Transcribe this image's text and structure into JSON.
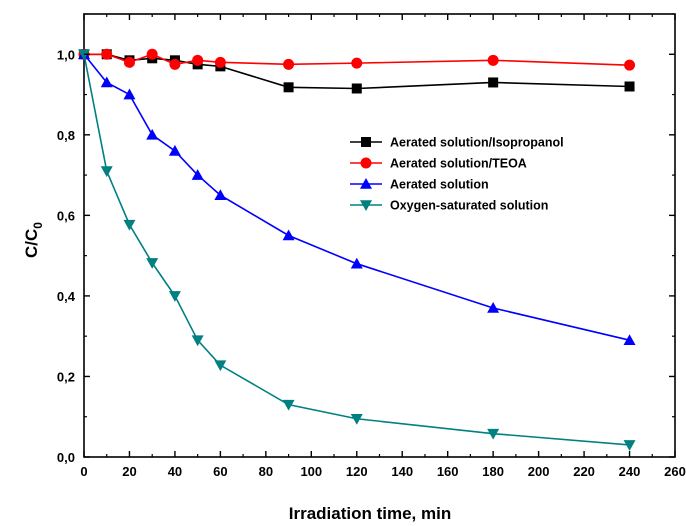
{
  "chart_data": {
    "type": "line",
    "title": "",
    "xlabel": "Irradiation time, min",
    "ylabel_main": "C/C",
    "ylabel_sub": "0",
    "xlim": [
      0,
      260
    ],
    "ylim": [
      0,
      1.1
    ],
    "x_ticks": [
      0,
      20,
      40,
      60,
      80,
      100,
      120,
      140,
      160,
      180,
      200,
      220,
      240,
      260
    ],
    "x_tick_labels": [
      "0",
      "20",
      "40",
      "60",
      "80",
      "100",
      "120",
      "140",
      "160",
      "180",
      "200",
      "220",
      "240",
      "260"
    ],
    "y_ticks": [
      0,
      0.2,
      0.4,
      0.6,
      0.8,
      1.0
    ],
    "y_tick_labels": [
      "0,0",
      "0,2",
      "0,4",
      "0,6",
      "0,8",
      "1,0"
    ],
    "grid": false,
    "legend_position": "right-middle",
    "series": [
      {
        "name": "Aerated solution/Isopropanol",
        "color": "#000000",
        "marker": "square",
        "x": [
          0,
          10,
          20,
          30,
          40,
          50,
          60,
          90,
          120,
          180,
          240
        ],
        "y": [
          1.0,
          1.0,
          0.985,
          0.99,
          0.985,
          0.975,
          0.97,
          0.918,
          0.915,
          0.93,
          0.92
        ]
      },
      {
        "name": "Aerated solution/TEOA",
        "color": "#ff0000",
        "marker": "circle",
        "x": [
          0,
          10,
          20,
          30,
          40,
          50,
          60,
          90,
          120,
          180,
          240
        ],
        "y": [
          1.0,
          1.0,
          0.98,
          1.0,
          0.975,
          0.985,
          0.98,
          0.975,
          0.978,
          0.985,
          0.973
        ]
      },
      {
        "name": "Aerated solution",
        "color": "#0000ff",
        "marker": "triangle-up",
        "x": [
          0,
          10,
          20,
          30,
          40,
          50,
          60,
          90,
          120,
          180,
          240
        ],
        "y": [
          1.0,
          0.93,
          0.9,
          0.8,
          0.76,
          0.7,
          0.65,
          0.55,
          0.48,
          0.37,
          0.29
        ]
      },
      {
        "name": "Oxygen-saturated solution",
        "color": "#008080",
        "marker": "triangle-down",
        "x": [
          0,
          10,
          20,
          30,
          40,
          50,
          60,
          90,
          120,
          180,
          240
        ],
        "y": [
          1.0,
          0.71,
          0.577,
          0.482,
          0.4,
          0.29,
          0.228,
          0.13,
          0.095,
          0.058,
          0.03
        ]
      }
    ]
  }
}
